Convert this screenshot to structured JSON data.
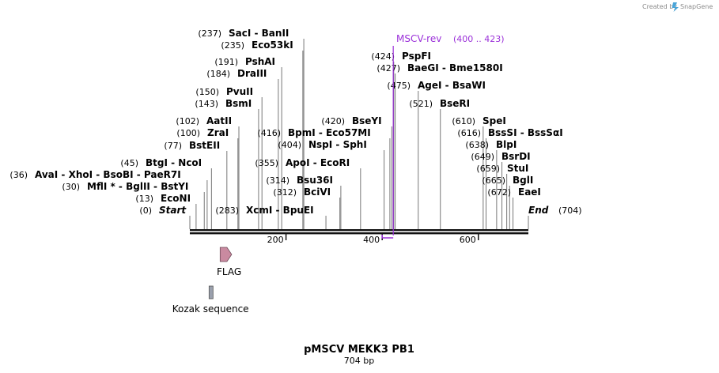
{
  "credit": {
    "text": "Created by",
    "brand": "SnapGene"
  },
  "plasmid": {
    "name": "pMSCV MEKK3 PB1",
    "size_label": "704 bp",
    "length": 704
  },
  "axis": {
    "ticks": [
      200,
      400,
      600
    ]
  },
  "primer": {
    "name": "MSCV-rev",
    "range": "(400 .. 423)",
    "start": 400,
    "end": 423,
    "color": "#9b30d9"
  },
  "features": [
    {
      "name": "FLAG",
      "start": 63,
      "end": 87,
      "color": "#c98aa0",
      "shape": "arrow"
    },
    {
      "name": "Kozak sequence",
      "start": 40,
      "end": 46,
      "color": "#9aa0ad",
      "shape": "box"
    }
  ],
  "sites": [
    {
      "pos": 237,
      "pos_label": "(237)",
      "label": "SacI   - BanII"
    },
    {
      "pos": 235,
      "pos_label": "(235)",
      "label": "Eco53kI"
    },
    {
      "pos": 191,
      "pos_label": "(191)",
      "label": "PshAI"
    },
    {
      "pos": 184,
      "pos_label": "(184)",
      "label": "DraIII"
    },
    {
      "pos": 150,
      "pos_label": "(150)",
      "label": "PvuII"
    },
    {
      "pos": 143,
      "pos_label": "(143)",
      "label": "BsmI"
    },
    {
      "pos": 102,
      "pos_label": "(102)",
      "label": "AatII"
    },
    {
      "pos": 100,
      "pos_label": "(100)",
      "label": "ZraI"
    },
    {
      "pos": 77,
      "pos_label": "(77)",
      "label": "BstEII"
    },
    {
      "pos": 45,
      "pos_label": "(45)",
      "label": "BtgI  - NcoI"
    },
    {
      "pos": 36,
      "pos_label": "(36)",
      "label": "AvaI  - XhoI  - BsoBI  - PaeR7I"
    },
    {
      "pos": 30,
      "pos_label": "(30)",
      "label": "MflI *  - BglII  - BstYI"
    },
    {
      "pos": 13,
      "pos_label": "(13)",
      "label": "EcoNI"
    },
    {
      "pos": 0,
      "pos_label": "(0)",
      "label": "Start"
    },
    {
      "pos": 283,
      "pos_label": "(283)",
      "label": "XcmI   - BpuEI"
    },
    {
      "pos": 416,
      "pos_label": "(416)",
      "label": "BpmI  - Eco57MI"
    },
    {
      "pos": 404,
      "pos_label": "(404)",
      "label": "NspI  - SphI"
    },
    {
      "pos": 355,
      "pos_label": "(355)",
      "label": "ApoI  - EcoRI"
    },
    {
      "pos": 314,
      "pos_label": "(314)",
      "label": "Bsu36I"
    },
    {
      "pos": 312,
      "pos_label": "(312)",
      "label": "BciVI"
    },
    {
      "pos": 420,
      "pos_label": "(420)",
      "label": "BseYI"
    },
    {
      "pos": 424,
      "pos_label": "(424)",
      "label": "PspFI"
    },
    {
      "pos": 427,
      "pos_label": "(427)",
      "label": "BaeGI  - Bme1580I"
    },
    {
      "pos": 475,
      "pos_label": "(475)",
      "label": "AgeI  - BsaWI"
    },
    {
      "pos": 521,
      "pos_label": "(521)",
      "label": "BseRI"
    },
    {
      "pos": 610,
      "pos_label": "(610)",
      "label": "SpeI"
    },
    {
      "pos": 616,
      "pos_label": "(616)",
      "label": "BssSI  - BssSαI"
    },
    {
      "pos": 638,
      "pos_label": "(638)",
      "label": "BlpI"
    },
    {
      "pos": 649,
      "pos_label": "(649)",
      "label": "BsrDI"
    },
    {
      "pos": 659,
      "pos_label": "(659)",
      "label": "StuI"
    },
    {
      "pos": 665,
      "pos_label": "(665)",
      "label": "BglI"
    },
    {
      "pos": 672,
      "pos_label": "(672)",
      "label": "EaeI"
    },
    {
      "pos": 704,
      "pos_label": "(704)",
      "label": "End"
    }
  ]
}
